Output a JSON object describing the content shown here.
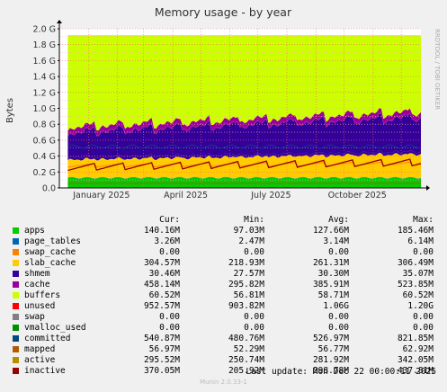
{
  "chart_data": {
    "type": "area",
    "title": "Memory usage - by year",
    "ylabel": "Bytes",
    "watermark": "RRDTOOL / TOBI OETIKER",
    "ylim": [
      0,
      2.0
    ],
    "y_unit": "G",
    "y_ticks": [
      "0.0",
      "0.2 G",
      "0.4 G",
      "0.6 G",
      "0.8 G",
      "1.0 G",
      "1.2 G",
      "1.4 G",
      "1.6 G",
      "1.8 G",
      "2.0 G"
    ],
    "x_ticks": [
      "January 2025",
      "April 2025",
      "July 2025",
      "October 2025"
    ],
    "x_range": [
      "2024-12-01",
      "2025-12-22"
    ],
    "grid": true,
    "columns": [
      "Cur:",
      "Min:",
      "Avg:",
      "Max:"
    ],
    "series": [
      {
        "name": "apps",
        "color": "#00cc00",
        "stack": true,
        "cur": "140.16M",
        "min": "97.03M",
        "avg": "127.66M",
        "max": "185.46M"
      },
      {
        "name": "page_tables",
        "color": "#0066b3",
        "stack": true,
        "cur": "3.26M",
        "min": "2.47M",
        "avg": "3.14M",
        "max": "6.14M"
      },
      {
        "name": "swap_cache",
        "color": "#ff8000",
        "stack": true,
        "cur": "0.00",
        "min": "0.00",
        "avg": "0.00",
        "max": "0.00"
      },
      {
        "name": "slab_cache",
        "color": "#ffcc00",
        "stack": true,
        "cur": "304.57M",
        "min": "218.93M",
        "avg": "261.31M",
        "max": "306.49M"
      },
      {
        "name": "shmem",
        "color": "#330099",
        "stack": true,
        "cur": "30.46M",
        "min": "27.57M",
        "avg": "30.30M",
        "max": "35.07M"
      },
      {
        "name": "cache",
        "color": "#990099",
        "stack": true,
        "cur": "458.14M",
        "min": "295.82M",
        "avg": "385.91M",
        "max": "523.85M"
      },
      {
        "name": "buffers",
        "color": "#ccff00",
        "stack": true,
        "cur": "60.52M",
        "min": "56.81M",
        "avg": "58.71M",
        "max": "60.52M"
      },
      {
        "name": "unused",
        "color": "#ff0000",
        "stack": true,
        "cur": "952.57M",
        "min": "903.82M",
        "avg": "1.06G",
        "max": "1.20G"
      },
      {
        "name": "swap",
        "color": "#808080",
        "stack": true,
        "cur": "0.00",
        "min": "0.00",
        "avg": "0.00",
        "max": "0.00"
      },
      {
        "name": "vmalloc_used",
        "color": "#008f00",
        "stack": true,
        "cur": "0.00",
        "min": "0.00",
        "avg": "0.00",
        "max": "0.00"
      },
      {
        "name": "committed",
        "color": "#00487d",
        "stack": false,
        "cur": "540.87M",
        "min": "480.76M",
        "avg": "526.97M",
        "max": "821.85M"
      },
      {
        "name": "mapped",
        "color": "#b35a00",
        "stack": false,
        "cur": "56.97M",
        "min": "52.29M",
        "avg": "56.77M",
        "max": "62.92M"
      },
      {
        "name": "active",
        "color": "#b38f00",
        "stack": false,
        "cur": "295.52M",
        "min": "250.74M",
        "avg": "281.92M",
        "max": "342.05M"
      },
      {
        "name": "inactive",
        "color": "#6b006b",
        "stack": false,
        "cur": "370.05M",
        "min": "205.92M",
        "avg": "298.78M",
        "max": "437.81M"
      }
    ]
  },
  "legend_swatch_colors": [
    "#00cc00",
    "#0066b3",
    "#ff8000",
    "#ffcc00",
    "#330099",
    "#990099",
    "#ccff00",
    "#ff0000",
    "#808080",
    "#008f00",
    "#00487d",
    "#b35a00",
    "#b38f00",
    "#990000"
  ],
  "plot_colors": {
    "apps": "#00cc00",
    "page_tables": "#0066b3",
    "slab_cache": "#ffcc00",
    "shmem": "#330099",
    "cache": "#330099",
    "cache_stripe": "#990099",
    "buffers": "#990099",
    "unused": "#ccff00",
    "committed": "#00487d",
    "mapped": "#b35a00",
    "active": "#ff8000",
    "inactive": "#990000"
  },
  "last_update": "Last update:  Mon Dec 22 00:00:11 2025",
  "footer": "Munin 2.0.33-1"
}
